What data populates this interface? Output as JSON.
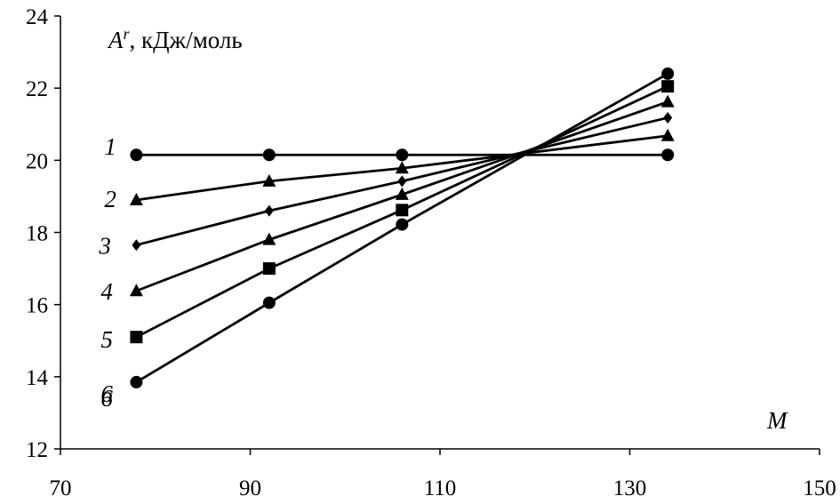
{
  "chart_data": {
    "type": "line",
    "ylabel_symbol": "A",
    "ylabel_sup": "r",
    "ylabel_units": ", кДж/моль",
    "xlabel": "M",
    "xlim": [
      70,
      150
    ],
    "ylim": [
      12,
      24
    ],
    "xticks": [
      70,
      90,
      110,
      130,
      150
    ],
    "yticks": [
      12,
      14,
      16,
      18,
      20,
      22,
      24
    ],
    "grid": false,
    "legend": "none",
    "x": [
      78,
      92,
      106,
      134
    ],
    "series": [
      {
        "name": "1",
        "marker": "circle",
        "values": [
          20.15,
          20.15,
          20.15,
          20.15
        ]
      },
      {
        "name": "2",
        "marker": "triangle",
        "values": [
          18.9,
          19.42,
          19.78,
          20.68
        ]
      },
      {
        "name": "3",
        "marker": "diamond",
        "values": [
          17.65,
          18.6,
          19.42,
          21.18
        ]
      },
      {
        "name": "4",
        "marker": "triangle",
        "values": [
          16.38,
          17.8,
          19.05,
          21.62
        ]
      },
      {
        "name": "5",
        "marker": "square",
        "values": [
          15.1,
          17.0,
          18.62,
          22.05
        ]
      },
      {
        "name": "6",
        "marker": "circle",
        "values": [
          13.85,
          16.05,
          18.22,
          22.4
        ]
      }
    ],
    "annotations": [
      "1",
      "2",
      "3",
      "4",
      "5",
      "6"
    ],
    "annotation_extra": "6"
  }
}
